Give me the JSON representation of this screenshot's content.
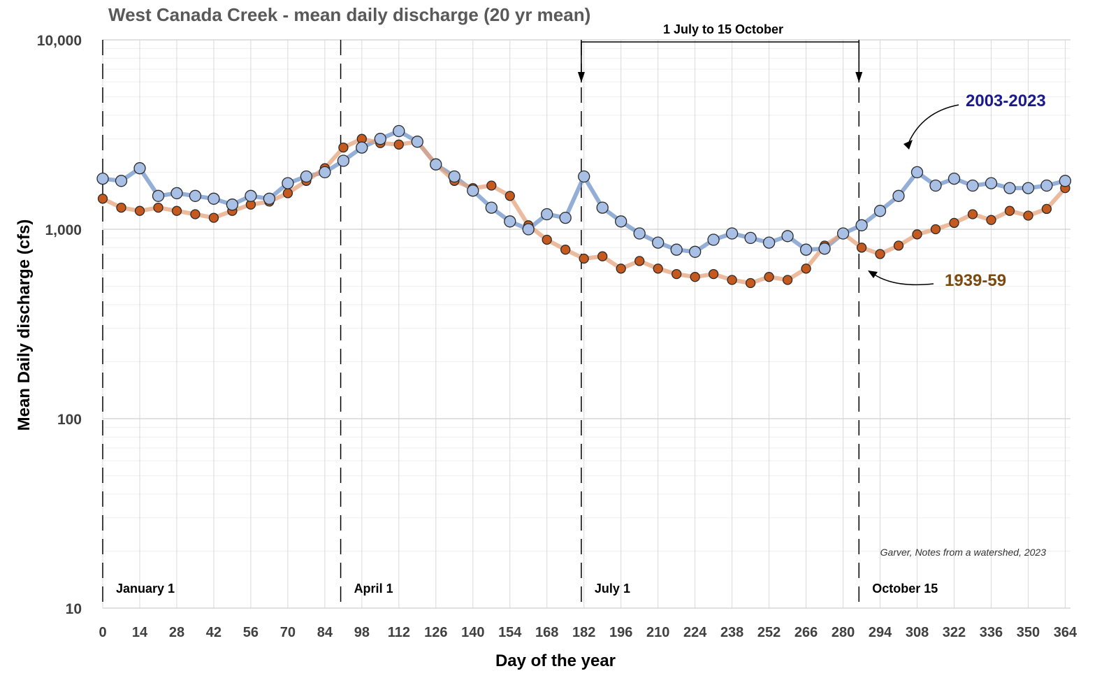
{
  "chart_data": {
    "type": "scatter",
    "title": "West Canada Creek - mean daily discharge (20 yr mean)",
    "xlabel": "Day of the year",
    "ylabel": "Mean Daily discharge (cfs)",
    "xlim": [
      0,
      366
    ],
    "ylim": [
      10,
      10000
    ],
    "yscale": "log",
    "xticks": [
      0,
      14,
      28,
      42,
      56,
      70,
      84,
      98,
      112,
      126,
      140,
      154,
      168,
      182,
      196,
      210,
      224,
      238,
      252,
      266,
      280,
      294,
      308,
      322,
      336,
      350,
      364
    ],
    "yticks": [
      {
        "value": 10,
        "label": "10"
      },
      {
        "value": 100,
        "label": "100"
      },
      {
        "value": 1000,
        "label": "1,000"
      },
      {
        "value": 10000,
        "label": "10,000"
      }
    ],
    "grid": true,
    "series": [
      {
        "name": "2003-2023",
        "color": "#a9c0e6",
        "edge_color": "#2b2b2b",
        "trend_color": "#6f93c9",
        "x": [
          0,
          7,
          14,
          21,
          28,
          35,
          42,
          49,
          56,
          63,
          70,
          77,
          84,
          91,
          98,
          105,
          112,
          119,
          126,
          133,
          140,
          147,
          154,
          161,
          168,
          175,
          182,
          189,
          196,
          203,
          210,
          217,
          224,
          231,
          238,
          245,
          252,
          259,
          266,
          273,
          280,
          287,
          294,
          301,
          308,
          315,
          322,
          329,
          336,
          343,
          350,
          357,
          364
        ],
        "values": [
          1850,
          1800,
          2100,
          1500,
          1550,
          1500,
          1450,
          1350,
          1500,
          1450,
          1750,
          1900,
          2000,
          2300,
          2700,
          3000,
          3300,
          2900,
          2200,
          1900,
          1600,
          1300,
          1100,
          1000,
          1200,
          1150,
          1900,
          1300,
          1100,
          950,
          850,
          780,
          760,
          880,
          950,
          900,
          850,
          920,
          780,
          790,
          950,
          1050,
          1250,
          1500,
          2000,
          1700,
          1850,
          1700,
          1750,
          1650,
          1650,
          1700,
          1800
        ]
      },
      {
        "name": "1939-59",
        "color": "#c65a1e",
        "edge_color": "#2b2b2b",
        "trend_color": "#e6a47c",
        "x": [
          0,
          7,
          14,
          21,
          28,
          35,
          42,
          49,
          56,
          63,
          70,
          77,
          84,
          91,
          98,
          105,
          112,
          119,
          126,
          133,
          140,
          147,
          154,
          161,
          168,
          175,
          182,
          189,
          196,
          203,
          210,
          217,
          224,
          231,
          238,
          245,
          252,
          259,
          266,
          273,
          280,
          287,
          294,
          301,
          308,
          315,
          322,
          329,
          336,
          343,
          350,
          357,
          364
        ],
        "values": [
          1450,
          1300,
          1250,
          1300,
          1250,
          1200,
          1150,
          1250,
          1350,
          1400,
          1550,
          1800,
          2100,
          2700,
          3000,
          2850,
          2800,
          2900,
          2200,
          1800,
          1650,
          1700,
          1500,
          1050,
          880,
          780,
          700,
          720,
          620,
          680,
          620,
          580,
          560,
          580,
          540,
          520,
          560,
          540,
          620,
          820,
          950,
          800,
          740,
          820,
          940,
          1000,
          1080,
          1200,
          1120,
          1250,
          1180,
          1280,
          1650
        ]
      }
    ],
    "annotations": {
      "markers": [
        {
          "x": 0,
          "label": "January 1"
        },
        {
          "x": 90,
          "label": "April 1"
        },
        {
          "x": 181,
          "label": "July 1"
        },
        {
          "x": 286,
          "label": "October 15"
        }
      ],
      "bracket_label": "1 July to 15 October",
      "credit": "Garver, Notes from a watershed, 2023"
    }
  }
}
